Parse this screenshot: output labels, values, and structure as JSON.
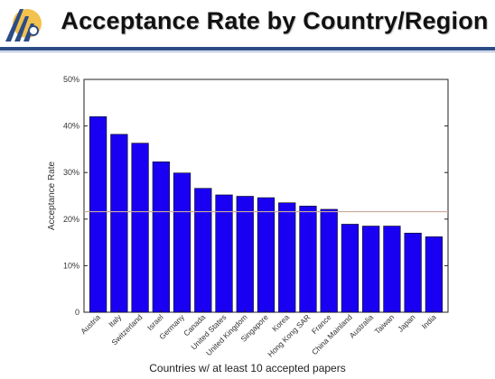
{
  "slide": {
    "title": "Acceptance Rate by Country/Region"
  },
  "colors": {
    "bar_fill": "#1a00f2",
    "bar_stroke": "#000000",
    "reference_line": "#c9a79c",
    "header_rule": "#2c4c86"
  },
  "chart_data": {
    "type": "bar",
    "title": "",
    "xlabel": "Countries w/ at least 10 accepted papers",
    "ylabel": "Acceptance Rate",
    "categories": [
      "Austria",
      "Italy",
      "Switzerland",
      "Israel",
      "Germany",
      "Canada",
      "United States",
      "United Kingdom",
      "Singapore",
      "Korea",
      "Hong Kong SAR",
      "France",
      "China Mainland",
      "Australia",
      "Taiwan",
      "Japan",
      "India"
    ],
    "values": [
      42.0,
      38.2,
      36.3,
      32.3,
      29.9,
      26.6,
      25.2,
      24.9,
      24.6,
      23.5,
      22.8,
      22.1,
      18.9,
      18.5,
      18.5,
      17.0,
      16.2
    ],
    "ylim": [
      0,
      50
    ],
    "yticks": [
      0,
      10,
      20,
      30,
      40,
      50
    ],
    "ytick_labels": [
      "0",
      "10%",
      "20%",
      "30%",
      "40%",
      "50%"
    ],
    "reference_line": 21.6,
    "grid": false,
    "legend": "none"
  }
}
